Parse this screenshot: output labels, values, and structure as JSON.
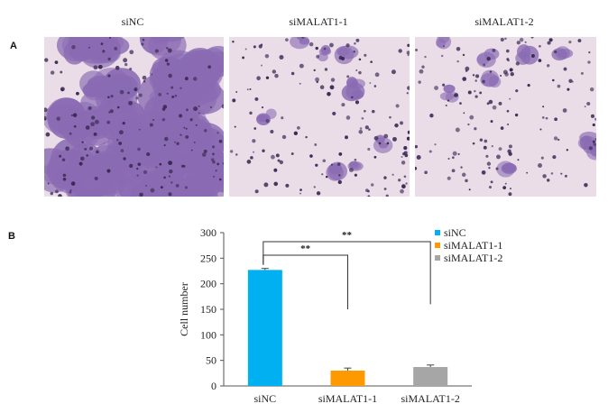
{
  "panels": {
    "a_label": "A",
    "b_label": "B"
  },
  "images": [
    {
      "label": "siNC",
      "density": "high"
    },
    {
      "label": "siMALAT1-1",
      "density": "low"
    },
    {
      "label": "siMALAT1-2",
      "density": "low"
    }
  ],
  "colors": {
    "stain_purple": "#8a6bb3",
    "background_pink": "#ebdde7",
    "nucleus_dark": "#3a2a55"
  },
  "chart_data": {
    "type": "bar",
    "categories": [
      "siNC",
      "siMALAT1-1",
      "siMALAT1-2"
    ],
    "values": [
      227,
      30,
      37
    ],
    "errors": [
      3,
      5,
      4
    ],
    "colors": [
      "#00b0f0",
      "#ff9900",
      "#a6a6a6"
    ],
    "ylabel": "Cell number",
    "ylim": [
      0,
      300
    ],
    "yticks": [
      0,
      50,
      100,
      150,
      200,
      250,
      300
    ],
    "legend": [
      "siNC",
      "siMALAT1-1",
      "siMALAT1-2"
    ],
    "legend_position": "top-right",
    "significance": [
      {
        "from": "siNC",
        "to": "siMALAT1-1",
        "label": "**"
      },
      {
        "from": "siNC",
        "to": "siMALAT1-2",
        "label": "**"
      }
    ],
    "grid": false
  }
}
